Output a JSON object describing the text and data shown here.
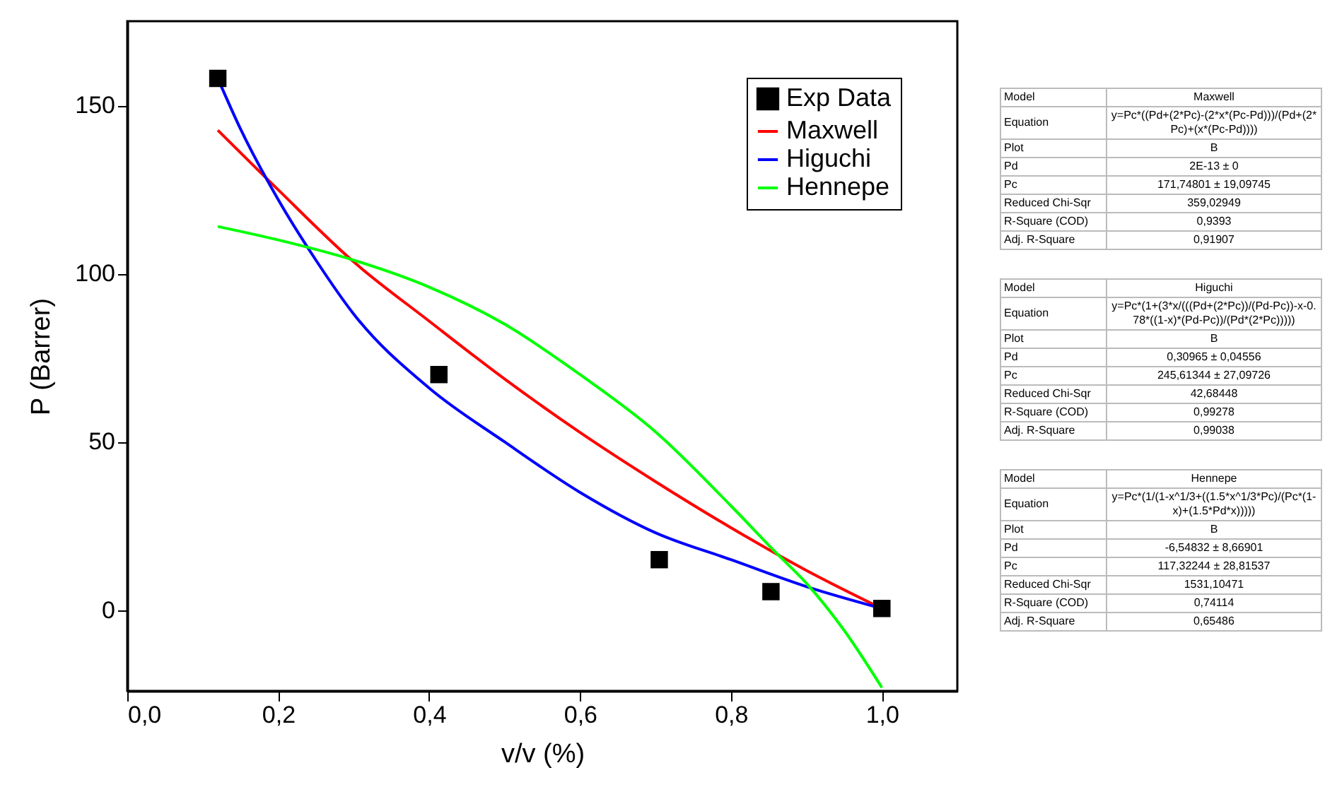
{
  "chart_data": [
    {
      "type": "line",
      "xlabel": "v/v (%)",
      "ylabel": "P (Barrer)",
      "xlim": [
        0,
        1.1
      ],
      "ylim": [
        -24,
        175
      ],
      "xticks": [
        {
          "value": 0,
          "label": "0,0"
        },
        {
          "value": 0.2,
          "label": "0,2"
        },
        {
          "value": 0.4,
          "label": "0,4"
        },
        {
          "value": 0.6,
          "label": "0,6"
        },
        {
          "value": 0.8,
          "label": "0,8"
        },
        {
          "value": 1,
          "label": "1,0"
        }
      ],
      "yticks": [
        0,
        50,
        100,
        150
      ],
      "grid": false,
      "legend": "top right",
      "series": [
        {
          "name": "Exp Data",
          "type": "scatter",
          "marker": "square",
          "color": "#000000",
          "x": [
            0.12,
            0.413,
            0.705,
            0.853,
            1.0
          ],
          "values": [
            158,
            70,
            15,
            5.5,
            0.5
          ]
        },
        {
          "name": "Maxwell",
          "type": "line",
          "color": "#ff0000",
          "x": [
            0.12,
            0.2,
            0.3,
            0.4,
            0.5,
            0.6,
            0.7,
            0.8,
            0.9,
            1.0
          ],
          "values": [
            142.6,
            124.9,
            103.5,
            85.9,
            68.7,
            52.8,
            38.2,
            24.5,
            11.8,
            0.5
          ]
        },
        {
          "name": "Higuchi",
          "type": "line",
          "color": "#0000ff",
          "x": [
            0.12,
            0.15,
            0.2,
            0.25,
            0.3,
            0.4,
            0.5,
            0.6,
            0.7,
            0.8,
            0.9,
            1.0
          ],
          "values": [
            158,
            143,
            122,
            104,
            88,
            66,
            50,
            35,
            23,
            15,
            7,
            0.5
          ]
        },
        {
          "name": "Hennepe",
          "type": "line",
          "color": "#00ff00",
          "x": [
            0.12,
            0.2,
            0.3,
            0.4,
            0.5,
            0.6,
            0.7,
            0.8,
            0.86,
            0.9,
            0.95,
            1.0
          ],
          "values": [
            114,
            110,
            104,
            96,
            85,
            70,
            53,
            31,
            17,
            8,
            -6,
            -23
          ]
        }
      ]
    },
    {
      "type": "other",
      "annotations": [
        "Model",
        "Maxwell",
        "Equation",
        "y=Pc*((Pd+(2*Pc)-(2*x*(Pc-Pd)))/(Pd+(2*Pc)+(x*(Pc-Pd))))",
        "Plot",
        "B",
        "Pd",
        "2E-13 ± 0",
        "Pc",
        "171,74801 ± 19,09745",
        "Reduced Chi-Sqr",
        "359,02949",
        "R-Square (COD)",
        "0,9393",
        "Adj. R-Square",
        "0,91907"
      ]
    },
    {
      "type": "other",
      "annotations": [
        "Model",
        "Higuchi",
        "Equation",
        "y=Pc*(1+(3*x/(((Pd+(2*Pc))/(Pd-Pc))-x-0.78*((1-x)*(Pd-Pc))/(Pd*(2*Pc)))))",
        "Plot",
        "B",
        "Pd",
        "0,30965 ± 0,04556",
        "Pc",
        "245,61344 ± 27,09726",
        "Reduced Chi-Sqr",
        "42,68448",
        "R-Square (COD)",
        "0,99278",
        "Adj. R-Square",
        "0,99038"
      ]
    },
    {
      "type": "other",
      "annotations": [
        "Model",
        "Hennepe",
        "Equation",
        "y=Pc*(1/(1-x^1/3+((1.5*x^1/3*Pc)/(Pc*(1-x)+(1.5*Pd*x)))))",
        "Plot",
        "B",
        "Pd",
        "-6,54832 ± 8,66901",
        "Pc",
        "117,32244 ± 28,81537",
        "Reduced Chi-Sqr",
        "1531,10471",
        "R-Square (COD)",
        "0,74114",
        "Adj. R-Square",
        "0,65486"
      ]
    }
  ]
}
